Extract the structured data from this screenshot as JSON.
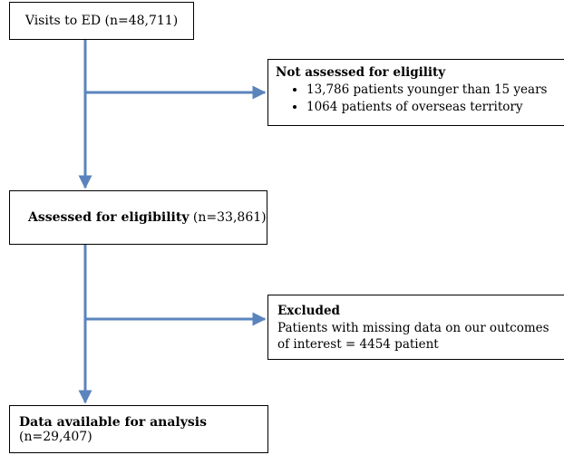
{
  "boxes": {
    "visits": {
      "label": "Visits to ED (n=48,711)"
    },
    "not_assessed": {
      "title": "Not assessed for eligility",
      "items": [
        "13,786  patients younger than 15 years",
        "1064 patients of overseas territory"
      ]
    },
    "assessed": {
      "bold": "Assessed for eligibility",
      "rest": " (n=33,861)"
    },
    "excluded": {
      "title": "Excluded",
      "text": "Patients with missing data on our outcomes of interest = 4454 patient"
    },
    "final": {
      "bold": "Data available for analysis",
      "rest": " (n=29,407)"
    }
  },
  "colors": {
    "arrow": "#5b84bd",
    "border": "#000000"
  }
}
